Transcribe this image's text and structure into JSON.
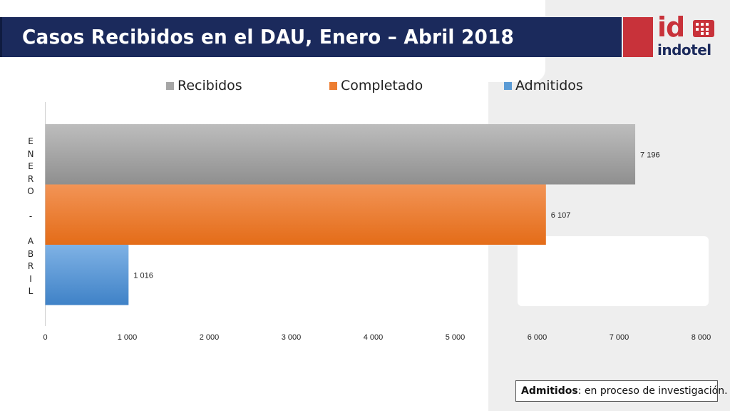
{
  "slide": {
    "title": "Casos Recibidos en el DAU, Enero – Abril 2018",
    "note_bold": "Admitidos",
    "note_rest": ": en proceso de investigación."
  },
  "logo": {
    "mark": "id",
    "name": "indotel",
    "icon": "indotel-logo-icon",
    "brand_red": "#c8323a",
    "brand_navy": "#1b2a5c"
  },
  "chart_data": {
    "type": "bar",
    "orientation": "horizontal",
    "categories": [
      "ENERO - ABRIL"
    ],
    "category_label": "ENERO - ABRIL",
    "series": [
      {
        "name": "Recibidos",
        "values": [
          7196
        ],
        "label": "7 196",
        "color": "#a6a6a6"
      },
      {
        "name": "Completado",
        "values": [
          6107
        ],
        "label": "6 107",
        "color": "#ed7d31"
      },
      {
        "name": "Admitidos",
        "values": [
          1016
        ],
        "label": "1 016",
        "color": "#5b9bd5"
      }
    ],
    "xlim": [
      0,
      8000
    ],
    "xticks": [
      0,
      1000,
      2000,
      3000,
      4000,
      5000,
      6000,
      7000,
      8000
    ],
    "xtick_labels": [
      "0",
      "1 000",
      "2 000",
      "3 000",
      "4 000",
      "5 000",
      "6 000",
      "7 000",
      "8 000"
    ],
    "legend_position": "top",
    "grid": false
  }
}
